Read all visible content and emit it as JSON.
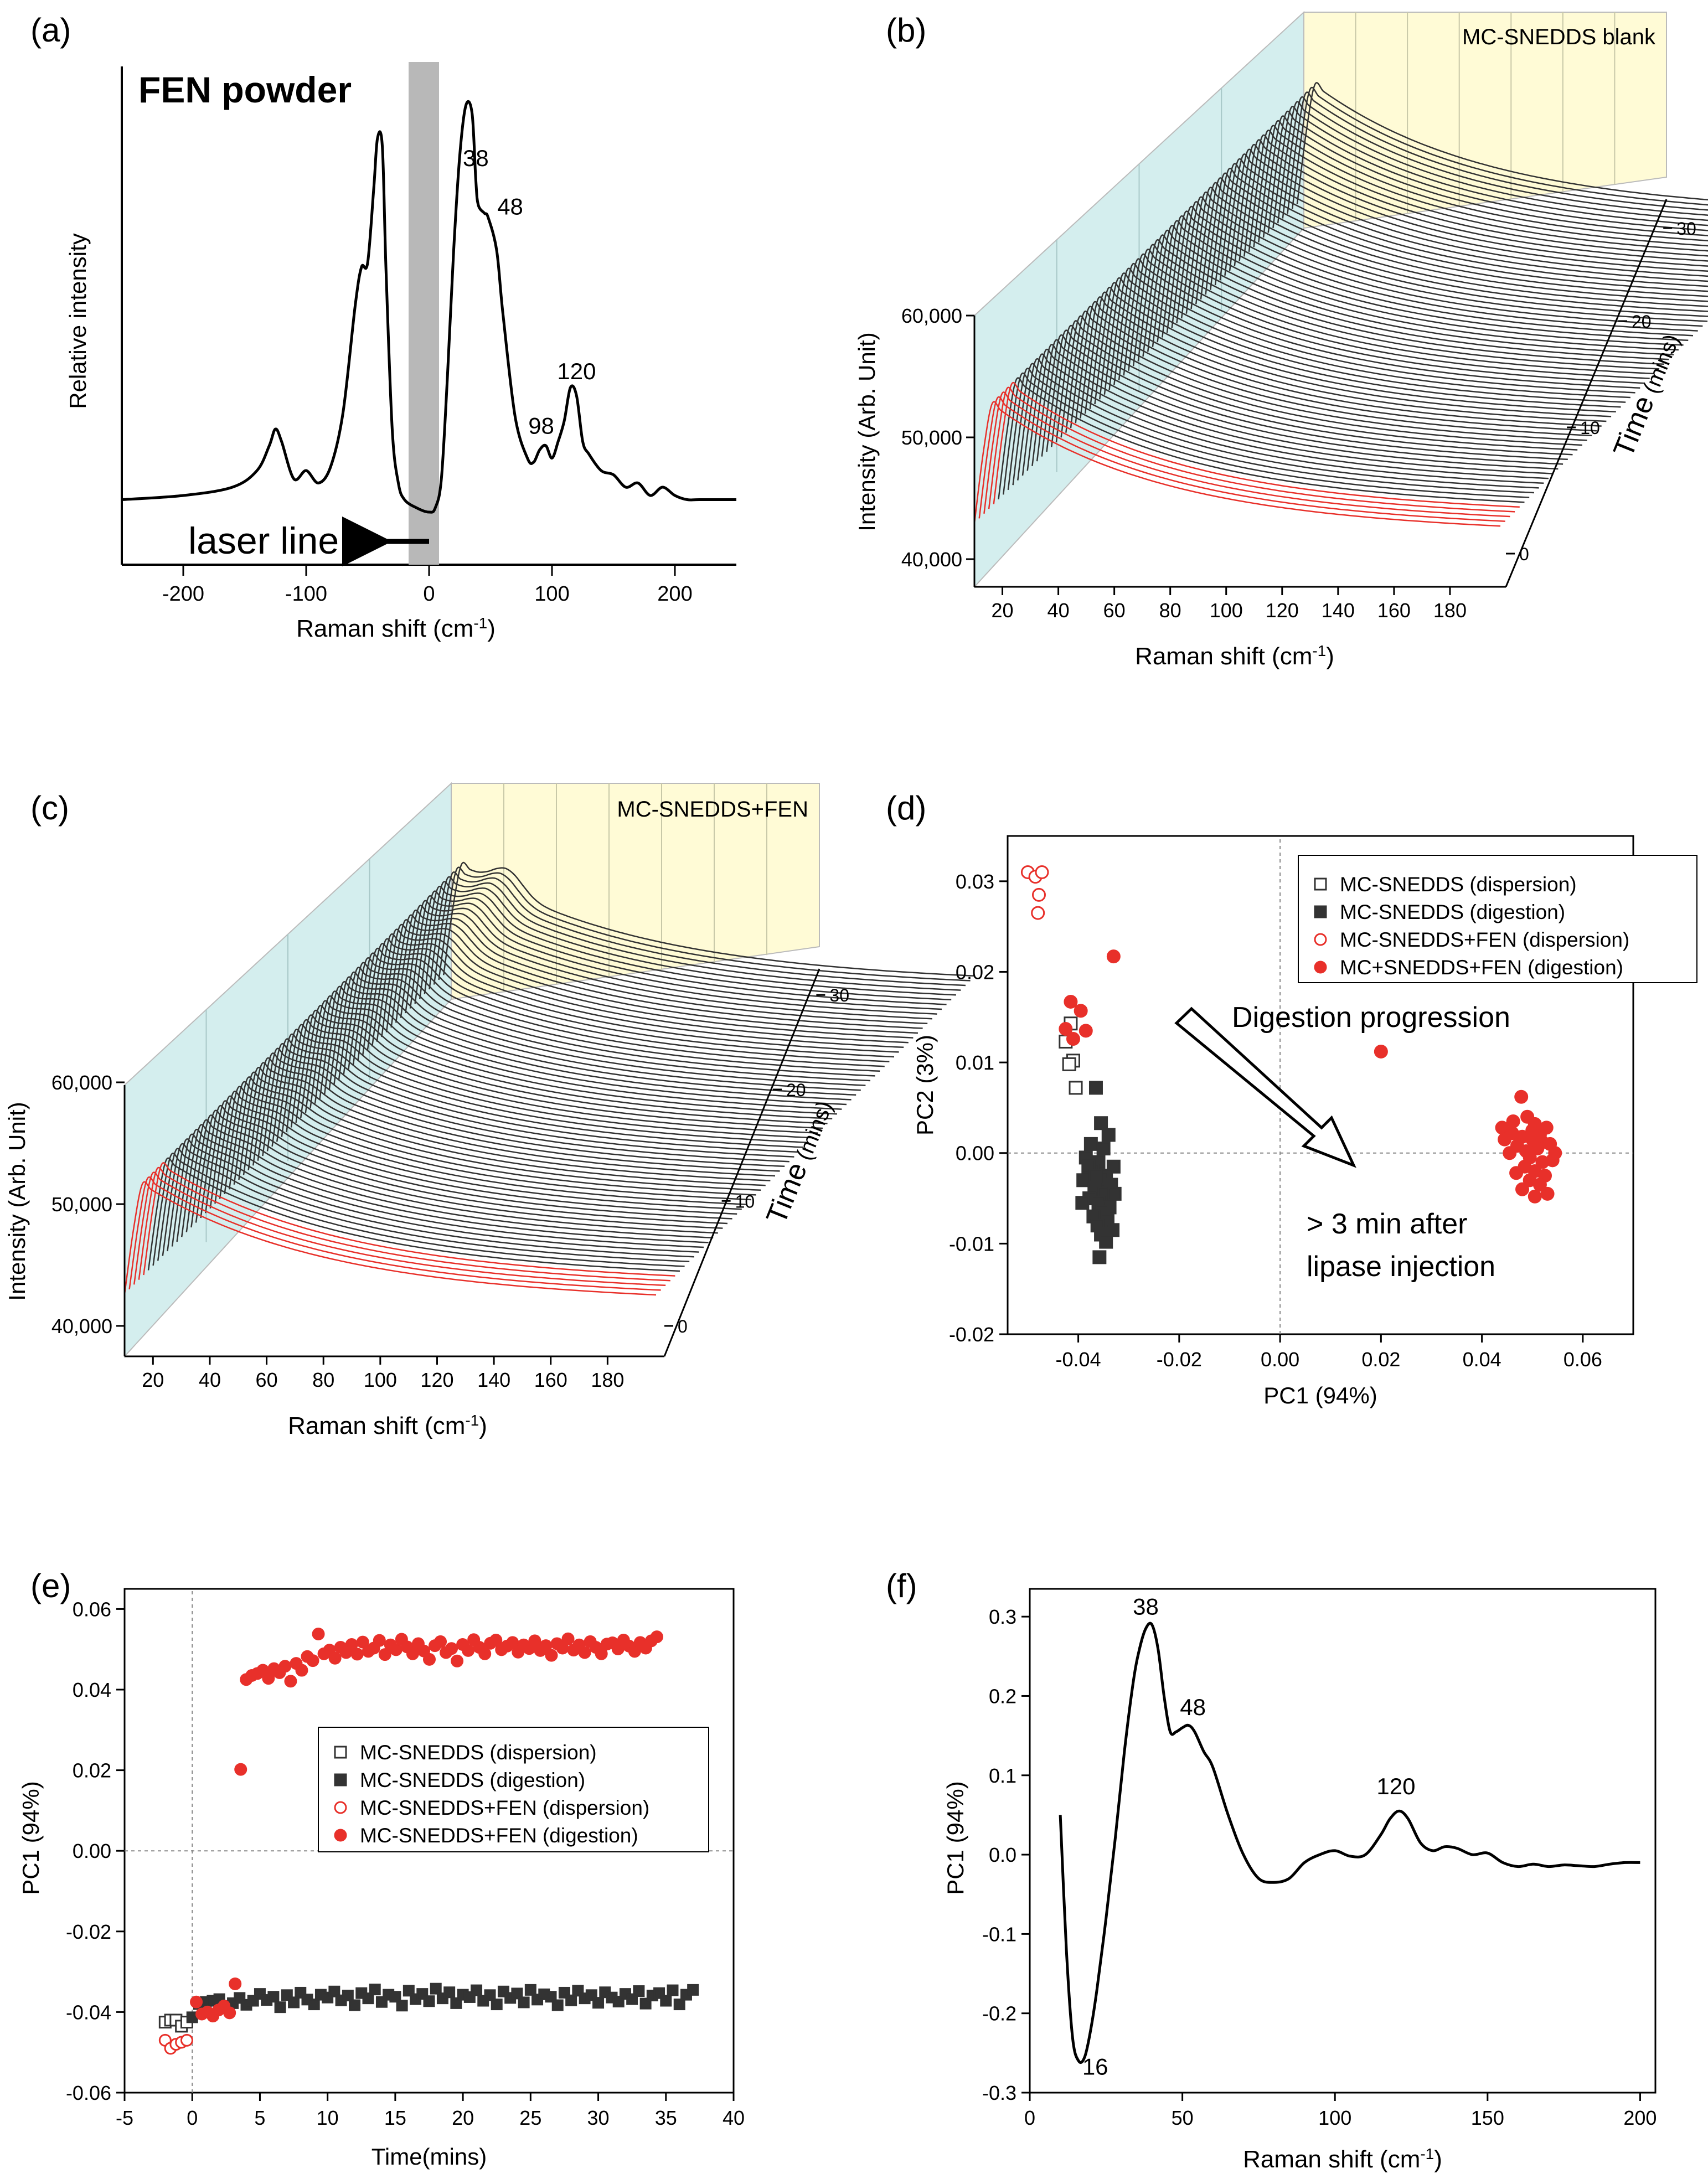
{
  "chart_data": [
    {
      "panel": "(a)",
      "type": "line",
      "title": "FEN powder",
      "xlabel": "Raman shift (cm",
      "xlabel_sup": "-1",
      "ylabel": "Relative intensity",
      "xlim": [
        -250,
        250
      ],
      "ylim": [
        0,
        1
      ],
      "xticks": [
        "-200",
        "-100",
        "0",
        "100",
        "200"
      ],
      "x_values": [
        -250,
        -200,
        -160,
        -140,
        -130,
        -125,
        -120,
        -110,
        -100,
        -90,
        -80,
        -70,
        -60,
        -55,
        -50,
        -45,
        -42,
        -38,
        -35,
        -30,
        -25,
        -20,
        -10,
        0,
        5,
        10,
        15,
        20,
        25,
        30,
        35,
        38,
        40,
        45,
        48,
        55,
        60,
        70,
        80,
        85,
        90,
        95,
        100,
        105,
        110,
        115,
        120,
        125,
        130,
        140,
        150,
        160,
        170,
        180,
        190,
        200,
        210,
        220,
        250
      ],
      "y_values": [
        0.05,
        0.06,
        0.08,
        0.12,
        0.18,
        0.22,
        0.19,
        0.1,
        0.12,
        0.09,
        0.13,
        0.26,
        0.52,
        0.61,
        0.62,
        0.8,
        0.92,
        0.9,
        0.6,
        0.22,
        0.09,
        0.05,
        0.03,
        0.02,
        0.03,
        0.1,
        0.35,
        0.65,
        0.88,
        1.0,
        0.98,
        0.82,
        0.76,
        0.74,
        0.73,
        0.65,
        0.5,
        0.25,
        0.15,
        0.14,
        0.17,
        0.18,
        0.15,
        0.19,
        0.24,
        0.32,
        0.3,
        0.19,
        0.16,
        0.12,
        0.11,
        0.08,
        0.09,
        0.06,
        0.08,
        0.06,
        0.05,
        0.05,
        0.05
      ],
      "peak_labels": [
        {
          "x": 38,
          "text": "38"
        },
        {
          "x": 48,
          "text": "48"
        },
        {
          "x": 98,
          "text": "98"
        },
        {
          "x": 120,
          "text": "120"
        }
      ],
      "annotation": "laser line"
    },
    {
      "panel": "(b)",
      "type": "line",
      "title": "MC-SNEDDS blank",
      "xlabel": "Raman shift (cm",
      "xlabel_sup": "-1",
      "ylabel": "Intensity (Arb. Unit)",
      "zlabel": "Time",
      "zlabel_unit": "mins",
      "xlim": [
        10,
        200
      ],
      "xticks": [
        "20",
        "40",
        "60",
        "80",
        "100",
        "120",
        "140",
        "160",
        "180"
      ],
      "yticks": [
        "40,000",
        "50,000",
        "60,000"
      ],
      "zticks": [
        "0",
        "10",
        "20",
        "30"
      ],
      "curves": 68,
      "red_curves": 5
    },
    {
      "panel": "(c)",
      "type": "line",
      "title": "MC-SNEDDS+FEN",
      "xlabel": "Raman shift (cm",
      "xlabel_sup": "-1",
      "ylabel": "Intensity (Arb. Unit)",
      "zlabel": "Time",
      "zlabel_unit": "mins",
      "xlim": [
        10,
        200
      ],
      "xticks": [
        "20",
        "40",
        "60",
        "80",
        "100",
        "120",
        "140",
        "160",
        "180"
      ],
      "yticks": [
        "40,000",
        "50,000",
        "60,000"
      ],
      "zticks": [
        "0",
        "10",
        "20",
        "30"
      ],
      "curves": 68,
      "red_curves": 5
    },
    {
      "panel": "(d)",
      "type": "scatter",
      "xlabel": "PC1 (94%)",
      "ylabel": "PC2 (3%)",
      "xlim": [
        -0.054,
        0.07
      ],
      "ylim": [
        -0.02,
        0.035
      ],
      "xticks": [
        -0.04,
        -0.02,
        0.0,
        0.02,
        0.04,
        0.06
      ],
      "xtick_labels": [
        "-0.04",
        "-0.02",
        "0.00",
        "0.02",
        "0.04",
        "0.06"
      ],
      "yticks": [
        -0.02,
        -0.01,
        0.0,
        0.01,
        0.02,
        0.03
      ],
      "ytick_labels": [
        "-0.02",
        "-0.01",
        "0.00",
        "0.01",
        "0.02",
        "0.03"
      ],
      "annotations": [
        "Digestion progression",
        "> 3 min after",
        "lipase injection"
      ],
      "legend": "top-right",
      "series": [
        {
          "name": "MC-SNEDDS (dispersion)",
          "color": "#333333",
          "filled": false,
          "marker": "square",
          "points": [
            [
              -0.0415,
              0.0143
            ],
            [
              -0.0425,
              0.0123
            ],
            [
              -0.041,
              0.0102
            ],
            [
              -0.0418,
              0.0098
            ],
            [
              -0.0405,
              0.0072
            ]
          ]
        },
        {
          "name": "MC-SNEDDS (digestion)",
          "color": "#333333",
          "filled": true,
          "marker": "square",
          "points": [
            [
              -0.0365,
              0.0072
            ],
            [
              -0.0355,
              0.0033
            ],
            [
              -0.034,
              0.002
            ],
            [
              -0.0375,
              0.001
            ],
            [
              -0.035,
              0.0005
            ],
            [
              -0.0385,
              -0.0005
            ],
            [
              -0.036,
              -0.001
            ],
            [
              -0.033,
              -0.0015
            ],
            [
              -0.0372,
              -0.002
            ],
            [
              -0.0345,
              -0.0025
            ],
            [
              -0.039,
              -0.003
            ],
            [
              -0.0358,
              -0.003
            ],
            [
              -0.0335,
              -0.0035
            ],
            [
              -0.0368,
              -0.004
            ],
            [
              -0.0348,
              -0.0045
            ],
            [
              -0.0378,
              -0.005
            ],
            [
              -0.036,
              -0.0055
            ],
            [
              -0.0338,
              -0.006
            ],
            [
              -0.0352,
              -0.0065
            ],
            [
              -0.037,
              -0.007
            ],
            [
              -0.0342,
              -0.0075
            ],
            [
              -0.0362,
              -0.008
            ],
            [
              -0.0332,
              -0.0085
            ],
            [
              -0.0355,
              -0.009
            ],
            [
              -0.0345,
              -0.0098
            ],
            [
              -0.0358,
              -0.0115
            ],
            [
              -0.038,
              -0.0015
            ],
            [
              -0.0328,
              -0.0045
            ],
            [
              -0.0392,
              -0.0055
            ],
            [
              -0.0365,
              -0.0025
            ]
          ]
        },
        {
          "name": "MC-SNEDDS+FEN (dispersion)",
          "color": "#e8302a",
          "filled": false,
          "marker": "circle",
          "points": [
            [
              -0.05,
              0.031
            ],
            [
              -0.0485,
              0.0305
            ],
            [
              -0.0472,
              0.031
            ],
            [
              -0.0478,
              0.0285
            ],
            [
              -0.048,
              0.0265
            ]
          ]
        },
        {
          "name": "MC+SNEDDS+FEN (digestion)",
          "color": "#e8302a",
          "filled": true,
          "marker": "circle",
          "points": [
            [
              -0.033,
              0.0217
            ],
            [
              -0.0415,
              0.0167
            ],
            [
              -0.0395,
              0.0157
            ],
            [
              -0.0425,
              0.0137
            ],
            [
              -0.0385,
              0.0135
            ],
            [
              -0.041,
              0.0126
            ],
            [
              0.02,
              0.0112
            ],
            [
              0.0478,
              0.0062
            ],
            [
              0.044,
              0.0028
            ],
            [
              0.046,
              0.0022
            ],
            [
              0.048,
              0.0018
            ],
            [
              0.05,
              0.0025
            ],
            [
              0.052,
              0.0012
            ],
            [
              0.0505,
              0.0032
            ],
            [
              0.049,
              0.004
            ],
            [
              0.051,
              0.0005
            ],
            [
              0.0535,
              0.001
            ],
            [
              0.047,
              0.0008
            ],
            [
              0.0455,
              0.0
            ],
            [
              0.0495,
              -0.0005
            ],
            [
              0.052,
              -0.001
            ],
            [
              0.054,
              -0.0008
            ],
            [
              0.0485,
              -0.0015
            ],
            [
              0.0505,
              -0.002
            ],
            [
              0.0468,
              -0.0022
            ],
            [
              0.0525,
              -0.0025
            ],
            [
              0.0495,
              -0.003
            ],
            [
              0.0515,
              -0.0035
            ],
            [
              0.048,
              -0.004
            ],
            [
              0.0505,
              -0.0048
            ],
            [
              0.053,
              -0.0045
            ],
            [
              0.0445,
              0.0015
            ],
            [
              0.0545,
              0.0
            ],
            [
              0.0462,
              0.0035
            ],
            [
              0.0515,
              0.002
            ],
            [
              0.05,
              0.0015
            ],
            [
              0.0488,
              0.0002
            ],
            [
              0.0528,
              0.0028
            ]
          ]
        }
      ]
    },
    {
      "panel": "(e)",
      "type": "scatter",
      "xlabel": "Time(mins)",
      "ylabel": "PC1 (94%)",
      "xlim": [
        -5,
        40
      ],
      "ylim": [
        -0.06,
        0.065
      ],
      "xticks": [
        -5,
        0,
        5,
        10,
        15,
        20,
        25,
        30,
        35,
        40
      ],
      "xtick_labels": [
        "-5",
        "0",
        "5",
        "10",
        "15",
        "20",
        "25",
        "30",
        "35",
        "40"
      ],
      "yticks": [
        -0.06,
        -0.04,
        -0.02,
        0.0,
        0.02,
        0.04,
        0.06
      ],
      "ytick_labels": [
        "-0.06",
        "-0.04",
        "-0.02",
        "0.00",
        "0.02",
        "0.04",
        "0.06"
      ],
      "legend": "center",
      "series": [
        {
          "name": "MC-SNEDDS (dispersion)",
          "color": "#333333",
          "filled": false,
          "marker": "square",
          "points": [
            [
              -2.0,
              -0.0425
            ],
            [
              -1.6,
              -0.042
            ],
            [
              -1.2,
              -0.042
            ],
            [
              -0.8,
              -0.0435
            ],
            [
              -0.4,
              -0.0425
            ]
          ]
        },
        {
          "name": "MC-SNEDDS (digestion)",
          "color": "#333333",
          "filled": true,
          "marker": "square"
        },
        {
          "name": "MC-SNEDDS+FEN (dispersion)",
          "color": "#e8302a",
          "filled": false,
          "marker": "circle",
          "points": [
            [
              -2.0,
              -0.047
            ],
            [
              -1.6,
              -0.049
            ],
            [
              -1.2,
              -0.048
            ],
            [
              -0.8,
              -0.0475
            ],
            [
              -0.4,
              -0.047
            ]
          ]
        },
        {
          "name": "MC-SNEDDS+FEN (digestion)",
          "color": "#e8302a",
          "filled": true,
          "marker": "circle"
        }
      ],
      "digestion_start": 0.0,
      "digestion_step": 0.5,
      "gray_digestion_values": [
        -0.0413,
        -0.038,
        -0.0375,
        -0.0372,
        -0.0368,
        -0.0385,
        -0.0378,
        -0.0365,
        -0.0382,
        -0.0372,
        -0.0355,
        -0.037,
        -0.0362,
        -0.0388,
        -0.0358,
        -0.0376,
        -0.0352,
        -0.0369,
        -0.0381,
        -0.0357,
        -0.0364,
        -0.0349,
        -0.0371,
        -0.0359,
        -0.0383,
        -0.0353,
        -0.0366,
        -0.0344,
        -0.0375,
        -0.0357,
        -0.0362,
        -0.0384,
        -0.0347,
        -0.0368,
        -0.0355,
        -0.0373,
        -0.0342,
        -0.0366,
        -0.0351,
        -0.0378,
        -0.0357,
        -0.0363,
        -0.0346,
        -0.0372,
        -0.0358,
        -0.0381,
        -0.0349,
        -0.0365,
        -0.0354,
        -0.0376,
        -0.0345,
        -0.0369,
        -0.0356,
        -0.0362,
        -0.0383,
        -0.0352,
        -0.0371,
        -0.0347,
        -0.0366,
        -0.0358,
        -0.0377,
        -0.0351,
        -0.0364,
        -0.0374,
        -0.0355,
        -0.0368,
        -0.0348,
        -0.0379,
        -0.0359,
        -0.0353,
        -0.0372,
        -0.0346,
        -0.0381,
        -0.0357,
        -0.0345
      ],
      "red_digestion_values": [
        -0.0375,
        -0.0405,
        -0.04,
        -0.041,
        -0.0395,
        -0.0385,
        -0.0402,
        -0.033,
        0.0202,
        0.0425,
        0.0435,
        0.044,
        0.0448,
        0.0428,
        0.0452,
        0.0442,
        0.0458,
        0.0421,
        0.0465,
        0.0448,
        0.0482,
        0.0472,
        0.0538,
        0.0489,
        0.0498,
        0.0478,
        0.0505,
        0.0492,
        0.0512,
        0.0488,
        0.0518,
        0.0495,
        0.0503,
        0.0522,
        0.0487,
        0.0511,
        0.0499,
        0.0525,
        0.0506,
        0.0489,
        0.0514,
        0.0496,
        0.0475,
        0.0509,
        0.0519,
        0.0492,
        0.0502,
        0.0471,
        0.0512,
        0.0497,
        0.0524,
        0.0505,
        0.0489,
        0.0515,
        0.0523,
        0.0499,
        0.0508,
        0.0517,
        0.0493,
        0.0511,
        0.0502,
        0.0521,
        0.0497,
        0.0509,
        0.0485,
        0.0514,
        0.0503,
        0.0526,
        0.0498,
        0.0511,
        0.0492,
        0.0519,
        0.0505,
        0.0489,
        0.0513,
        0.0516,
        0.0501,
        0.0523,
        0.0508,
        0.0495,
        0.0517,
        0.0503,
        0.0521,
        0.0531
      ]
    },
    {
      "panel": "(f)",
      "type": "line",
      "xlabel": "Raman shift (cm",
      "xlabel_sup": "-1",
      "ylabel": "PC1 (94%)",
      "xlim": [
        0,
        205
      ],
      "ylim": [
        -0.3,
        0.335
      ],
      "xticks": [
        0,
        50,
        100,
        150,
        200
      ],
      "xtick_labels": [
        "0",
        "50",
        "100",
        "150",
        "200"
      ],
      "yticks": [
        -0.3,
        -0.2,
        -0.1,
        0.0,
        0.1,
        0.2,
        0.3
      ],
      "ytick_labels": [
        "-0.3",
        "-0.2",
        "-0.1",
        "0.0",
        "0.1",
        "0.2",
        "0.3"
      ],
      "x_values": [
        10,
        12,
        14,
        16,
        18,
        20,
        22,
        25,
        28,
        31,
        34,
        36,
        38,
        40,
        42,
        44,
        46,
        48,
        50,
        52,
        54,
        57,
        60,
        65,
        70,
        75,
        80,
        85,
        90,
        95,
        100,
        105,
        110,
        115,
        118,
        121,
        124,
        128,
        132,
        136,
        140,
        145,
        150,
        155,
        160,
        165,
        170,
        175,
        180,
        185,
        190,
        195,
        200
      ],
      "y_values": [
        0.05,
        -0.12,
        -0.23,
        -0.26,
        -0.255,
        -0.22,
        -0.17,
        -0.08,
        0.02,
        0.13,
        0.22,
        0.26,
        0.285,
        0.29,
        0.26,
        0.2,
        0.155,
        0.155,
        0.16,
        0.163,
        0.155,
        0.13,
        0.11,
        0.05,
        0.0,
        -0.03,
        -0.035,
        -0.03,
        -0.01,
        0.0,
        0.005,
        -0.002,
        0.0,
        0.025,
        0.045,
        0.055,
        0.045,
        0.015,
        0.005,
        0.01,
        0.008,
        0.0,
        0.002,
        -0.01,
        -0.015,
        -0.012,
        -0.015,
        -0.013,
        -0.014,
        -0.015,
        -0.012,
        -0.01,
        -0.01
      ],
      "peak_labels": [
        {
          "x": 38,
          "text": "38"
        },
        {
          "x": 48,
          "text": "48"
        },
        {
          "x": 120,
          "text": "120"
        },
        {
          "x": 16,
          "text": "16"
        }
      ]
    }
  ],
  "panel_labels": [
    "(a)",
    "(b)",
    "(c)",
    "(d)",
    "(e)",
    "(f)"
  ]
}
